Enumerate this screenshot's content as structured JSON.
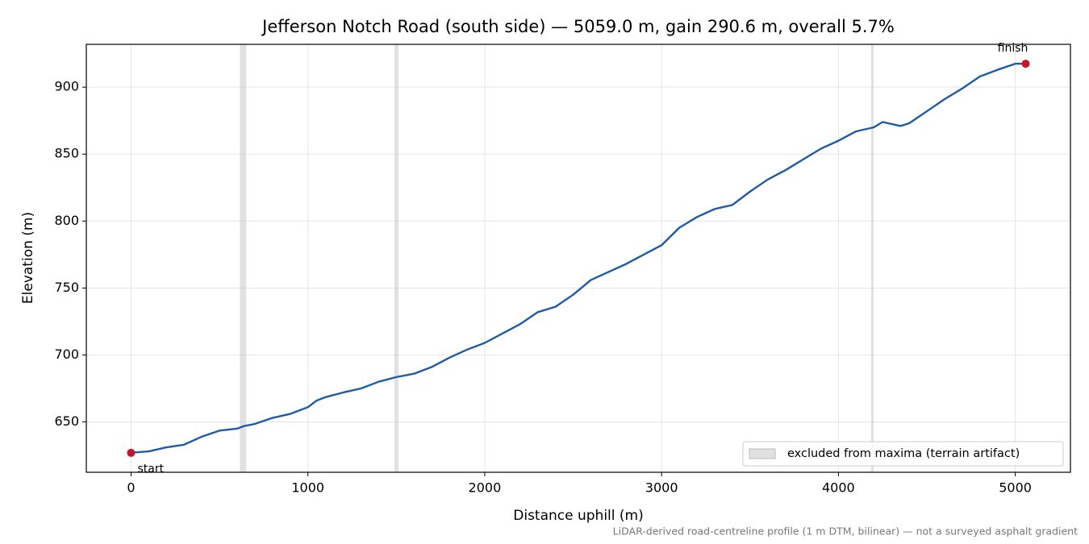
{
  "chart_data": {
    "type": "line",
    "title": "Jefferson Notch Road (south side) — 5059.0 m, gain 290.6 m, overall 5.7%",
    "x_label": "Distance uphill (m)",
    "y_label": "Elevation (m)",
    "note": "LiDAR-derived road-centreline profile (1 m DTM, bilinear) — not a surveyed asphalt gradient",
    "x": [
      0,
      100,
      200,
      300,
      400,
      500,
      600,
      640,
      700,
      800,
      900,
      1000,
      1050,
      1100,
      1200,
      1300,
      1400,
      1500,
      1600,
      1700,
      1800,
      1900,
      2000,
      2100,
      2200,
      2300,
      2400,
      2500,
      2600,
      2700,
      2800,
      2900,
      3000,
      3100,
      3200,
      3300,
      3400,
      3500,
      3600,
      3700,
      3800,
      3900,
      4000,
      4100,
      4200,
      4250,
      4350,
      4400,
      4500,
      4600,
      4700,
      4800,
      4900,
      5000,
      5059
    ],
    "series": [
      {
        "color": "#1f5aa8",
        "values": [
          627,
          628,
          631,
          633,
          639,
          643.5,
          645,
          647,
          648.5,
          653,
          656,
          661,
          666,
          668.5,
          672,
          675,
          680,
          683.5,
          686,
          691,
          698,
          704,
          709,
          716,
          723,
          732,
          736,
          745,
          756,
          762,
          768,
          775,
          782,
          795,
          803,
          809,
          812,
          822,
          831,
          838,
          846,
          854,
          860,
          867,
          870,
          874,
          871,
          873,
          882,
          891,
          899,
          908,
          913,
          917.5,
          917.5
        ]
      }
    ],
    "shaded_spans": {
      "label": "excluded from maxima (terrain artifact)",
      "color": "#c8c8c8",
      "ranges": [
        [
          615,
          651
        ],
        [
          1489,
          1512
        ],
        [
          4185,
          4199
        ]
      ]
    },
    "markers": [
      {
        "label": "start",
        "x": 0,
        "y": 626.9,
        "color": "#c0182a"
      },
      {
        "label": "finish",
        "x": 5059,
        "y": 917.5,
        "color": "#c0182a"
      }
    ],
    "xlim": [
      -253,
      5312
    ],
    "ylim": [
      612.4,
      932.0
    ],
    "xticks": [
      0,
      1000,
      2000,
      3000,
      4000,
      5000
    ],
    "yticks": [
      650,
      700,
      750,
      800,
      850,
      900
    ],
    "grid": true,
    "legend": "lower right"
  }
}
